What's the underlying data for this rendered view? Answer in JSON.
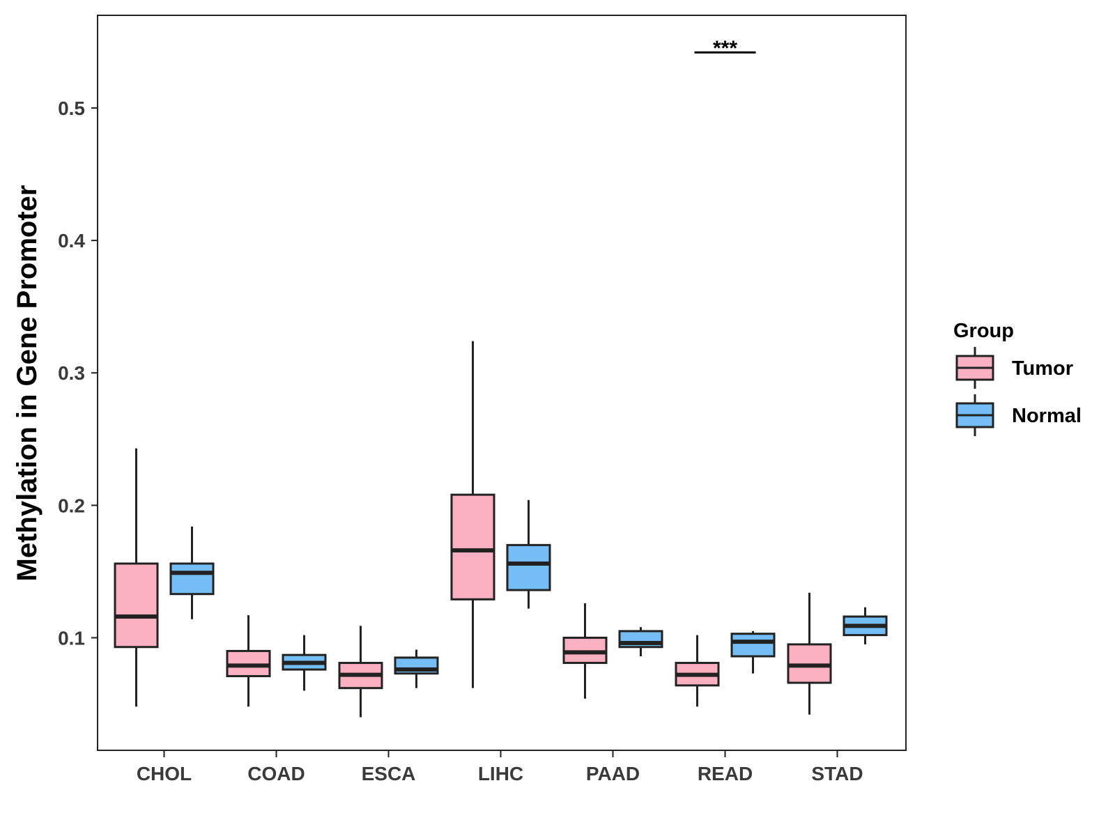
{
  "chart_data": {
    "type": "boxplot",
    "ylabel": "Methylation in Gene Promoter",
    "xlabel": "",
    "ylim": [
      0.015,
      0.57
    ],
    "yticks": [
      "0.1",
      "0.2",
      "0.3",
      "0.4",
      "0.5"
    ],
    "categories": [
      "CHOL",
      "COAD",
      "ESCA",
      "LIHC",
      "PAAD",
      "READ",
      "STAD"
    ],
    "series": [
      {
        "name": "Tumor",
        "color": "#fbb0c1",
        "boxes": [
          {
            "min": 0.048,
            "q1": 0.093,
            "median": 0.116,
            "q3": 0.156,
            "max": 0.243
          },
          {
            "min": 0.048,
            "q1": 0.071,
            "median": 0.079,
            "q3": 0.09,
            "max": 0.117
          },
          {
            "min": 0.04,
            "q1": 0.062,
            "median": 0.072,
            "q3": 0.081,
            "max": 0.109
          },
          {
            "min": 0.062,
            "q1": 0.129,
            "median": 0.166,
            "q3": 0.208,
            "max": 0.324
          },
          {
            "min": 0.054,
            "q1": 0.081,
            "median": 0.089,
            "q3": 0.1,
            "max": 0.126
          },
          {
            "min": 0.048,
            "q1": 0.064,
            "median": 0.072,
            "q3": 0.081,
            "max": 0.102
          },
          {
            "min": 0.042,
            "q1": 0.066,
            "median": 0.079,
            "q3": 0.095,
            "max": 0.134
          }
        ]
      },
      {
        "name": "Normal",
        "color": "#74bdf5",
        "boxes": [
          {
            "min": 0.114,
            "q1": 0.133,
            "median": 0.149,
            "q3": 0.156,
            "max": 0.184
          },
          {
            "min": 0.06,
            "q1": 0.076,
            "median": 0.081,
            "q3": 0.087,
            "max": 0.102
          },
          {
            "min": 0.062,
            "q1": 0.073,
            "median": 0.076,
            "q3": 0.085,
            "max": 0.091
          },
          {
            "min": 0.122,
            "q1": 0.136,
            "median": 0.156,
            "q3": 0.17,
            "max": 0.204
          },
          {
            "min": 0.086,
            "q1": 0.093,
            "median": 0.096,
            "q3": 0.105,
            "max": 0.108
          },
          {
            "min": 0.073,
            "q1": 0.086,
            "median": 0.097,
            "q3": 0.103,
            "max": 0.105
          },
          {
            "min": 0.095,
            "q1": 0.102,
            "median": 0.109,
            "q3": 0.116,
            "max": 0.123
          }
        ]
      }
    ],
    "annotations": [
      {
        "category": "READ",
        "text": "***",
        "y": 0.542
      }
    ],
    "legend": {
      "title": "Group",
      "position": "right",
      "items": [
        "Tumor",
        "Normal"
      ]
    }
  }
}
